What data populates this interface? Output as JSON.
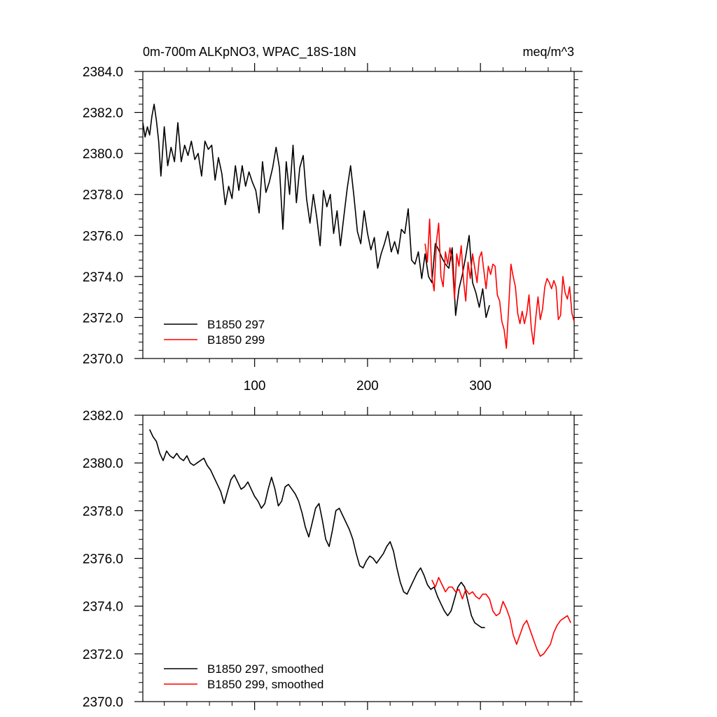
{
  "chart_data": [
    {
      "type": "line",
      "title": "0m-700m ALKpNO3, WPAC_18S-18N",
      "units": "meq/m^3",
      "xlim": [
        1,
        383
      ],
      "ylim": [
        2370.0,
        2384.0
      ],
      "xticks": [
        100,
        200,
        300
      ],
      "yticks": [
        2370.0,
        2372.0,
        2374.0,
        2376.0,
        2378.0,
        2380.0,
        2382.0,
        2384.0
      ],
      "ytick_labels": [
        "2370.0",
        "2372.0",
        "2374.0",
        "2376.0",
        "2378.0",
        "2380.0",
        "2382.0",
        "2384.0"
      ],
      "legend_position": "bottom-left",
      "series": [
        {
          "name": "B1850 297",
          "color": "#000000",
          "x": [
            1,
            3,
            5,
            7,
            9,
            11,
            13,
            15,
            17,
            20,
            23,
            26,
            29,
            32,
            35,
            38,
            41,
            44,
            47,
            50,
            53,
            56,
            59,
            62,
            65,
            68,
            71,
            74,
            77,
            80,
            83,
            86,
            89,
            92,
            95,
            98,
            101,
            104,
            107,
            110,
            113,
            116,
            119,
            122,
            125,
            128,
            131,
            134,
            137,
            140,
            143,
            146,
            149,
            152,
            155,
            158,
            161,
            164,
            167,
            170,
            173,
            176,
            179,
            182,
            185,
            188,
            191,
            194,
            197,
            200,
            203,
            206,
            209,
            212,
            215,
            218,
            221,
            224,
            227,
            230,
            233,
            236,
            239,
            242,
            245,
            248,
            251,
            254,
            257,
            260,
            263,
            266,
            269,
            272,
            275,
            278,
            281,
            284,
            287,
            290,
            293,
            296,
            299,
            302,
            305,
            308
          ],
          "values": [
            2381.5,
            2380.8,
            2381.3,
            2380.9,
            2381.8,
            2382.4,
            2381.6,
            2380.6,
            2378.9,
            2381.3,
            2379.4,
            2380.3,
            2379.6,
            2381.5,
            2379.6,
            2380.4,
            2379.9,
            2380.6,
            2379.7,
            2380.0,
            2378.9,
            2380.6,
            2380.2,
            2380.4,
            2378.7,
            2379.8,
            2379.0,
            2377.5,
            2378.4,
            2377.8,
            2379.4,
            2378.2,
            2379.4,
            2378.4,
            2379.1,
            2378.6,
            2378.2,
            2377.1,
            2379.6,
            2378.1,
            2378.6,
            2379.3,
            2380.3,
            2379.3,
            2376.3,
            2379.6,
            2378.0,
            2380.4,
            2377.6,
            2379.3,
            2379.9,
            2377.8,
            2376.6,
            2378.0,
            2376.9,
            2375.5,
            2378.2,
            2377.4,
            2378.0,
            2376.1,
            2377.2,
            2375.5,
            2376.9,
            2378.3,
            2379.4,
            2377.9,
            2376.2,
            2375.6,
            2377.2,
            2376.1,
            2375.3,
            2375.9,
            2374.4,
            2375.1,
            2375.6,
            2376.2,
            2375.2,
            2375.7,
            2375.1,
            2376.3,
            2376.1,
            2377.3,
            2374.8,
            2374.6,
            2375.2,
            2373.9,
            2375.1,
            2374.0,
            2373.7,
            2375.6,
            2375.3,
            2374.9,
            2374.6,
            2374.4,
            2375.4,
            2372.1,
            2373.4,
            2374.1,
            2375.0,
            2376.0,
            2373.7,
            2373.2,
            2372.5,
            2373.4,
            2372.0,
            2372.6
          ]
        },
        {
          "name": "B1850 299",
          "color": "#ff0000",
          "x": [
            251,
            253,
            255,
            257,
            259,
            261,
            263,
            265,
            267,
            269,
            271,
            273,
            275,
            277,
            279,
            281,
            283,
            285,
            287,
            289,
            291,
            293,
            295,
            297,
            299,
            301,
            303,
            305,
            307,
            309,
            311,
            313,
            315,
            317,
            319,
            321,
            323,
            325,
            327,
            329,
            331,
            333,
            335,
            337,
            339,
            341,
            343,
            345,
            347,
            349,
            351,
            353,
            355,
            357,
            359,
            361,
            363,
            365,
            367,
            369,
            371,
            373,
            375,
            377,
            379,
            381,
            383
          ],
          "values": [
            2375.6,
            2374.7,
            2376.8,
            2374.0,
            2373.3,
            2375.7,
            2376.6,
            2374.0,
            2373.5,
            2375.2,
            2374.6,
            2375.4,
            2374.7,
            2372.9,
            2375.1,
            2374.5,
            2375.5,
            2373.8,
            2372.8,
            2374.7,
            2373.9,
            2375.1,
            2374.4,
            2373.7,
            2374.9,
            2375.2,
            2374.3,
            2373.4,
            2374.5,
            2374.1,
            2374.6,
            2374.5,
            2373.1,
            2372.8,
            2371.8,
            2371.4,
            2370.5,
            2372.5,
            2374.6,
            2374.0,
            2373.5,
            2372.2,
            2371.7,
            2372.3,
            2371.7,
            2372.2,
            2373.1,
            2371.5,
            2370.7,
            2372.0,
            2373.0,
            2371.9,
            2372.4,
            2373.5,
            2373.9,
            2373.7,
            2373.4,
            2373.8,
            2373.5,
            2371.9,
            2372.1,
            2374.0,
            2373.2,
            2372.9,
            2373.5,
            2372.2,
            2371.8
          ]
        }
      ]
    },
    {
      "type": "line",
      "title": "",
      "units": "",
      "xlim": [
        1,
        383
      ],
      "ylim": [
        2370.0,
        2382.0
      ],
      "xticks": [
        100,
        200,
        300
      ],
      "yticks": [
        2370.0,
        2372.0,
        2374.0,
        2376.0,
        2378.0,
        2380.0,
        2382.0
      ],
      "ytick_labels": [
        "2370.0",
        "2372.0",
        "2374.0",
        "2376.0",
        "2378.0",
        "2380.0",
        "2382.0"
      ],
      "legend_position": "bottom-left",
      "series": [
        {
          "name": "B1850 297, smoothed",
          "color": "#000000",
          "x": [
            7,
            10,
            13,
            16,
            19,
            22,
            25,
            28,
            31,
            34,
            37,
            40,
            43,
            46,
            49,
            52,
            55,
            58,
            61,
            64,
            67,
            70,
            73,
            76,
            79,
            82,
            85,
            88,
            91,
            94,
            97,
            100,
            103,
            106,
            109,
            112,
            115,
            118,
            121,
            124,
            127,
            130,
            133,
            136,
            139,
            142,
            145,
            148,
            151,
            154,
            157,
            160,
            163,
            166,
            169,
            172,
            175,
            178,
            181,
            184,
            187,
            190,
            193,
            196,
            199,
            202,
            205,
            208,
            211,
            214,
            217,
            220,
            223,
            226,
            229,
            232,
            235,
            238,
            241,
            244,
            247,
            250,
            253,
            256,
            259,
            262,
            265,
            268,
            271,
            274,
            277,
            280,
            283,
            286,
            289,
            292,
            295,
            298,
            301,
            304
          ],
          "values": [
            2381.4,
            2381.1,
            2380.9,
            2380.4,
            2380.1,
            2380.5,
            2380.3,
            2380.2,
            2380.4,
            2380.2,
            2380.1,
            2380.3,
            2380.0,
            2379.9,
            2380.0,
            2380.1,
            2380.2,
            2379.9,
            2379.7,
            2379.4,
            2379.1,
            2378.8,
            2378.3,
            2378.8,
            2379.3,
            2379.5,
            2379.2,
            2378.9,
            2379.0,
            2379.2,
            2378.9,
            2378.6,
            2378.4,
            2378.1,
            2378.3,
            2378.9,
            2379.4,
            2378.9,
            2378.2,
            2378.4,
            2379.0,
            2379.1,
            2378.9,
            2378.7,
            2378.4,
            2377.9,
            2377.3,
            2376.9,
            2377.5,
            2378.1,
            2378.3,
            2377.6,
            2376.8,
            2376.5,
            2377.2,
            2378.0,
            2378.1,
            2377.8,
            2377.5,
            2377.2,
            2376.8,
            2376.2,
            2375.7,
            2375.6,
            2375.9,
            2376.1,
            2376.0,
            2375.8,
            2376.0,
            2376.2,
            2376.5,
            2376.7,
            2376.3,
            2375.6,
            2375.0,
            2374.6,
            2374.5,
            2374.8,
            2375.1,
            2375.4,
            2375.6,
            2375.3,
            2374.9,
            2374.7,
            2374.8,
            2374.4,
            2374.1,
            2373.8,
            2373.6,
            2373.8,
            2374.3,
            2374.8,
            2375.0,
            2374.8,
            2374.2,
            2373.6,
            2373.3,
            2373.2,
            2373.1,
            2373.1
          ]
        },
        {
          "name": "B1850 299, smoothed",
          "color": "#ff0000",
          "x": [
            257,
            260,
            263,
            266,
            269,
            272,
            275,
            278,
            281,
            284,
            287,
            290,
            293,
            296,
            299,
            302,
            305,
            308,
            311,
            314,
            317,
            320,
            323,
            326,
            329,
            332,
            335,
            338,
            341,
            344,
            347,
            350,
            353,
            356,
            359,
            362,
            365,
            368,
            371,
            374,
            377,
            380
          ],
          "values": [
            2375.1,
            2374.8,
            2375.2,
            2374.9,
            2374.6,
            2374.8,
            2374.8,
            2374.6,
            2374.7,
            2374.3,
            2374.7,
            2374.5,
            2374.6,
            2374.4,
            2374.3,
            2374.5,
            2374.5,
            2374.3,
            2373.8,
            2373.6,
            2373.7,
            2374.2,
            2373.9,
            2373.5,
            2372.8,
            2372.4,
            2372.8,
            2373.2,
            2373.4,
            2373.0,
            2372.6,
            2372.2,
            2371.9,
            2372.0,
            2372.2,
            2372.4,
            2372.9,
            2373.2,
            2373.4,
            2373.5,
            2373.6,
            2373.3
          ]
        }
      ]
    }
  ]
}
